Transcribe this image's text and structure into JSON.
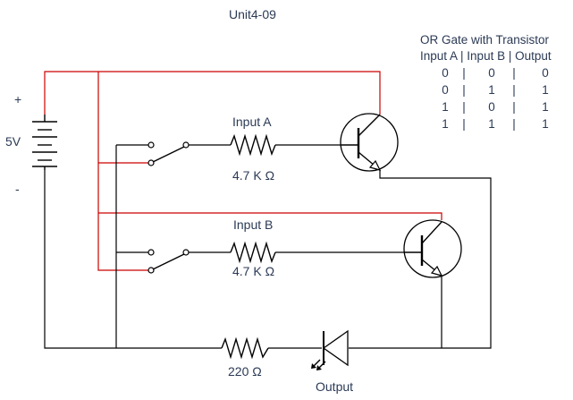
{
  "title": "Unit4-09",
  "battery": {
    "plus": "+",
    "minus": "-",
    "voltage": "5V"
  },
  "resistors": {
    "a_name": "Input A",
    "a_value": "4.7 K Ω",
    "b_name": "Input B",
    "b_value": "4.7 K Ω",
    "led_value": "220 Ω"
  },
  "output_label": "Output",
  "truth_table": {
    "caption": "OR Gate with Transistor",
    "header": "Input A | Input B | Output",
    "rows": [
      {
        "a": "0",
        "b": "0",
        "out": "0"
      },
      {
        "a": "0",
        "b": "1",
        "out": "1"
      },
      {
        "a": "1",
        "b": "0",
        "out": "1"
      },
      {
        "a": "1",
        "b": "1",
        "out": "1"
      }
    ],
    "separator": "|"
  },
  "colors": {
    "wire": "#000000",
    "supply_wire": "#cc0000",
    "text": "#2b3a55"
  }
}
